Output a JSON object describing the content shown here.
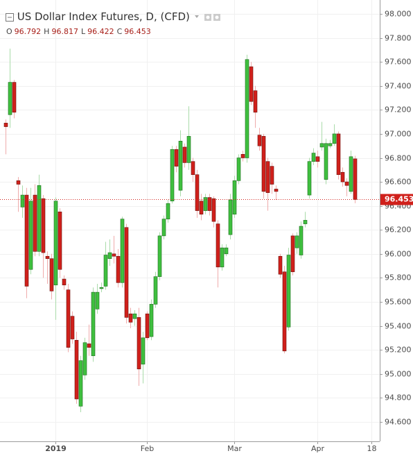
{
  "chart_data": {
    "type": "candlestick",
    "title": "US Dollar Index Futures, D, (CFD)",
    "ohlc_labels": [
      "O",
      "H",
      "L",
      "C"
    ],
    "ohlc_values": [
      96.792,
      96.817,
      96.422,
      96.453
    ],
    "last_price": 96.453,
    "up_color": "#3fbf3f",
    "down_color": "#d0201b",
    "price_line_color": "#d0201b",
    "grid": true,
    "ylim": [
      94.437,
      98.116
    ],
    "yticks": [
      {
        "value": 94.6,
        "label": "94.600"
      },
      {
        "value": 94.8,
        "label": "94.800"
      },
      {
        "value": 95.0,
        "label": "95.000"
      },
      {
        "value": 95.2,
        "label": "95.200"
      },
      {
        "value": 95.4,
        "label": "95.400"
      },
      {
        "value": 95.6,
        "label": "95.600"
      },
      {
        "value": 95.8,
        "label": "95.800"
      },
      {
        "value": 96.0,
        "label": "96.000"
      },
      {
        "value": 96.2,
        "label": "96.200"
      },
      {
        "value": 96.4,
        "label": "96.400"
      },
      {
        "value": 96.6,
        "label": "96.600"
      },
      {
        "value": 96.8,
        "label": "96.800"
      },
      {
        "value": 97.0,
        "label": "97.000"
      },
      {
        "value": 97.2,
        "label": "97.200"
      },
      {
        "value": 97.4,
        "label": "97.400"
      },
      {
        "value": 97.6,
        "label": "97.600"
      },
      {
        "value": 97.8,
        "label": "97.800"
      },
      {
        "value": 98.0,
        "label": "98.000"
      }
    ],
    "xlim": [
      -1.33,
      90
    ],
    "xticks": [
      {
        "value": 12,
        "label": "2019"
      },
      {
        "value": 34,
        "label": "Feb"
      },
      {
        "value": 55,
        "label": "Mar"
      },
      {
        "value": 75,
        "label": "Apr"
      },
      {
        "value": 88,
        "label": "18"
      }
    ],
    "open": [
      97.09,
      97.16,
      97.43,
      96.61,
      96.39,
      96.49,
      95.87,
      96.49,
      96.02,
      96.46,
      95.98,
      95.96,
      95.74,
      96.35,
      95.79,
      95.7,
      95.48,
      95.28,
      94.73,
      94.99,
      95.25,
      95.15,
      95.54,
      95.71,
      95.73,
      95.96,
      96.0,
      95.98,
      95.76,
      96.22,
      95.5,
      95.46,
      95.47,
      95.08,
      95.5,
      95.31,
      95.58,
      95.81,
      96.15,
      96.29,
      96.44,
      96.87,
      96.53,
      96.89,
      96.76,
      96.77,
      96.66,
      96.44,
      96.36,
      96.47,
      96.46,
      96.25,
      95.89,
      96.0,
      96.16,
      96.33,
      96.61,
      96.83,
      96.8,
      97.56,
      97.36,
      96.99,
      96.98,
      96.77,
      96.73,
      96.54,
      95.98,
      95.85,
      95.39,
      96.15,
      96.05,
      95.99,
      96.25,
      96.49,
      96.77,
      96.81,
      96.89,
      96.62,
      96.9,
      96.92,
      97.0,
      96.68,
      96.6,
      96.52,
      96.792
    ],
    "high": [
      97.12,
      97.71,
      97.45,
      96.64,
      96.57,
      96.55,
      96.55,
      96.58,
      96.66,
      96.49,
      96.02,
      96.0,
      96.47,
      96.38,
      95.82,
      95.75,
      95.52,
      95.35,
      95.15,
      95.3,
      95.41,
      95.72,
      95.75,
      95.76,
      96.1,
      96.12,
      96.15,
      96.04,
      96.31,
      96.25,
      95.55,
      95.53,
      95.55,
      95.35,
      95.52,
      95.62,
      95.85,
      96.18,
      96.32,
      96.45,
      96.9,
      96.9,
      97.03,
      96.92,
      97.23,
      96.8,
      96.7,
      96.5,
      96.5,
      96.5,
      96.48,
      96.28,
      96.08,
      96.08,
      96.5,
      96.65,
      96.83,
      96.86,
      97.66,
      97.6,
      97.4,
      97.05,
      97.0,
      96.8,
      96.76,
      96.57,
      96.0,
      95.9,
      96.05,
      96.17,
      96.18,
      96.27,
      96.35,
      96.8,
      96.88,
      96.86,
      97.1,
      96.96,
      96.95,
      97.08,
      97.02,
      96.72,
      96.63,
      96.86,
      96.817
    ],
    "low": [
      96.83,
      97.05,
      97.13,
      96.35,
      96.3,
      95.63,
      95.83,
      95.98,
      95.98,
      95.8,
      95.75,
      95.62,
      95.45,
      95.8,
      95.7,
      95.18,
      95.25,
      94.75,
      94.68,
      94.95,
      95.15,
      95.1,
      95.5,
      95.68,
      95.7,
      95.9,
      95.92,
      95.72,
      95.72,
      95.42,
      95.38,
      95.4,
      94.9,
      94.92,
      95.28,
      95.28,
      95.55,
      95.78,
      96.12,
      96.26,
      96.42,
      96.68,
      96.48,
      96.72,
      96.7,
      96.6,
      96.3,
      96.28,
      96.33,
      96.32,
      96.22,
      95.72,
      95.86,
      95.98,
      96.12,
      96.3,
      96.58,
      96.77,
      96.76,
      97.24,
      97.05,
      96.86,
      96.46,
      96.36,
      96.5,
      96.45,
      95.8,
      95.17,
      95.36,
      95.82,
      96.0,
      95.96,
      96.22,
      96.46,
      96.74,
      96.72,
      96.86,
      96.58,
      96.88,
      96.9,
      96.62,
      96.56,
      96.48,
      96.5,
      96.422
    ],
    "close": [
      97.06,
      97.43,
      97.18,
      96.58,
      96.49,
      95.73,
      96.44,
      96.02,
      96.57,
      96.01,
      95.96,
      95.69,
      96.44,
      95.87,
      95.74,
      95.22,
      95.29,
      94.79,
      95.11,
      95.26,
      95.22,
      95.68,
      95.68,
      95.72,
      95.99,
      96.01,
      95.98,
      95.76,
      96.29,
      95.47,
      95.43,
      95.5,
      95.04,
      95.3,
      95.3,
      95.58,
      95.81,
      96.15,
      96.29,
      96.42,
      96.87,
      96.73,
      96.94,
      96.76,
      96.98,
      96.66,
      96.36,
      96.33,
      96.47,
      96.36,
      96.27,
      95.89,
      96.05,
      96.05,
      96.45,
      96.61,
      96.8,
      96.8,
      97.62,
      97.27,
      97.18,
      96.9,
      96.52,
      96.51,
      96.58,
      96.52,
      95.83,
      95.19,
      95.99,
      95.85,
      96.15,
      96.23,
      96.28,
      96.77,
      96.84,
      96.77,
      96.92,
      96.92,
      96.92,
      97.0,
      96.66,
      96.6,
      96.57,
      96.81,
      96.453
    ]
  }
}
